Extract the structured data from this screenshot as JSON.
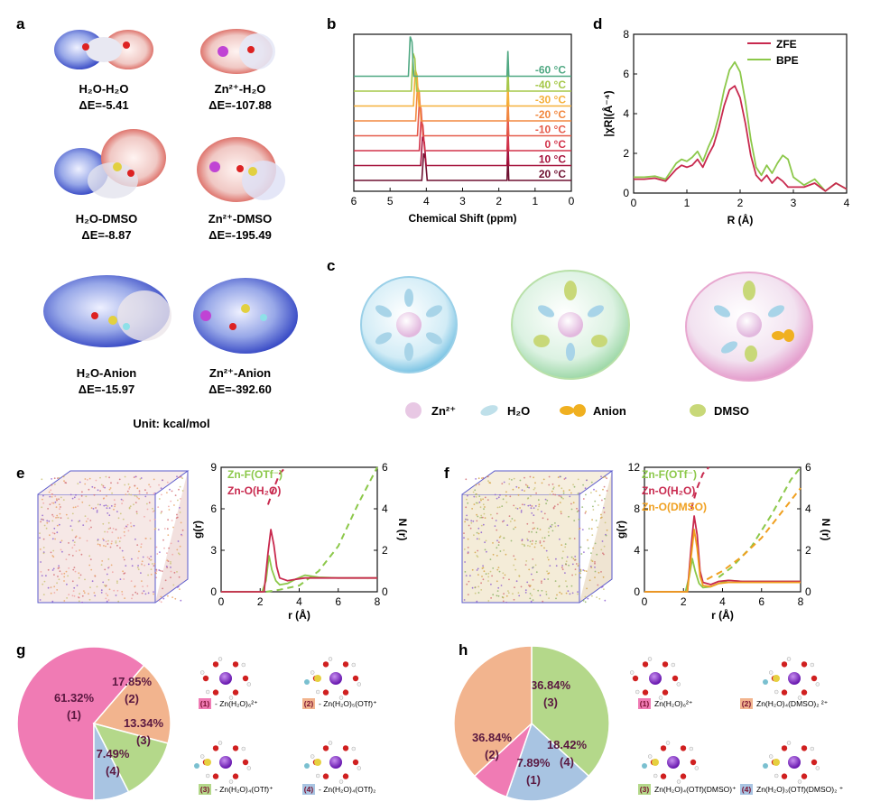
{
  "panels": {
    "a": {
      "letter": "a",
      "items": [
        {
          "name": "H₂O-H₂O",
          "energy": "ΔE=-5.41"
        },
        {
          "name": "Zn²⁺-H₂O",
          "energy": "ΔE=-107.88"
        },
        {
          "name": "H₂O-DMSO",
          "energy": "ΔE=-8.87"
        },
        {
          "name": "Zn²⁺-DMSO",
          "energy": "ΔE=-195.49"
        },
        {
          "name": "H₂O-Anion",
          "energy": "ΔE=-15.97"
        },
        {
          "name": "Zn²⁺-Anion",
          "energy": "ΔE=-392.60"
        }
      ],
      "unit": "Unit: kcal/mol"
    },
    "b": {
      "letter": "b"
    },
    "c": {
      "letter": "c",
      "legend": [
        {
          "label": "Zn²⁺",
          "color": "#e8c8e4"
        },
        {
          "label": "H₂O",
          "color": "#bfe0ea"
        },
        {
          "label": "Anion",
          "color": "#f0b020"
        },
        {
          "label": "DMSO",
          "color": "#c8d878"
        }
      ]
    },
    "d": {
      "letter": "d"
    },
    "e": {
      "letter": "e"
    },
    "f": {
      "letter": "f"
    },
    "g": {
      "letter": "g"
    },
    "h": {
      "letter": "h"
    }
  },
  "chart_data": [
    {
      "id": "b",
      "type": "line",
      "xlabel": "Chemical Shift (ppm)",
      "xlim": [
        6,
        0
      ],
      "x_ticks": [
        "6",
        "5",
        "4",
        "3",
        "2",
        "1",
        "0"
      ],
      "series": [
        {
          "name": "20 °C",
          "color": "#6e1030",
          "peaks": [
            4.05,
            1.75
          ]
        },
        {
          "name": "10 °C",
          "color": "#a5123c",
          "peaks": [
            4.08,
            1.75
          ]
        },
        {
          "name": "0 °C",
          "color": "#d2334a",
          "peaks": [
            4.12,
            1.75
          ]
        },
        {
          "name": "-10 °C",
          "color": "#e55a4a",
          "peaks": [
            4.17,
            1.75
          ]
        },
        {
          "name": "-20 °C",
          "color": "#f28840",
          "peaks": [
            4.22,
            1.75
          ]
        },
        {
          "name": "-30 °C",
          "color": "#f5b03a",
          "peaks": [
            4.28,
            1.75
          ]
        },
        {
          "name": "-40 °C",
          "color": "#a6c84a",
          "peaks": [
            4.34,
            1.75
          ]
        },
        {
          "name": "-60 °C",
          "color": "#4fa882",
          "peaks": [
            4.42,
            1.75
          ]
        }
      ]
    },
    {
      "id": "d",
      "type": "line",
      "xlabel": "R (Å)",
      "ylabel": "|χR|(Å⁻⁴)",
      "xlim": [
        0,
        4
      ],
      "ylim": [
        0,
        8
      ],
      "x_ticks": [
        "0",
        "1",
        "2",
        "3",
        "4"
      ],
      "y_ticks": [
        "0",
        "2",
        "4",
        "6",
        "8"
      ],
      "legend": "top-right",
      "series": [
        {
          "name": "ZFE",
          "color": "#c8294e",
          "x": [
            0,
            0.2,
            0.4,
            0.6,
            0.8,
            0.9,
            1.0,
            1.1,
            1.2,
            1.3,
            1.4,
            1.5,
            1.6,
            1.7,
            1.8,
            1.9,
            2.0,
            2.1,
            2.2,
            2.3,
            2.4,
            2.5,
            2.6,
            2.7,
            2.8,
            2.9,
            3.0,
            3.2,
            3.4,
            3.6,
            3.8,
            4.0
          ],
          "y": [
            0.7,
            0.7,
            0.75,
            0.6,
            1.2,
            1.4,
            1.3,
            1.4,
            1.7,
            1.3,
            1.9,
            2.4,
            3.3,
            4.4,
            5.2,
            5.4,
            4.8,
            3.5,
            1.9,
            0.9,
            0.6,
            0.9,
            0.5,
            0.8,
            0.6,
            0.3,
            0.3,
            0.3,
            0.5,
            0.1,
            0.5,
            0.2
          ]
        },
        {
          "name": "BPE",
          "color": "#8cc84a",
          "x": [
            0,
            0.2,
            0.4,
            0.6,
            0.8,
            0.9,
            1.0,
            1.1,
            1.2,
            1.3,
            1.4,
            1.5,
            1.6,
            1.7,
            1.8,
            1.9,
            2.0,
            2.1,
            2.2,
            2.3,
            2.4,
            2.5,
            2.6,
            2.7,
            2.8,
            2.9,
            3.0,
            3.2,
            3.4,
            3.6,
            3.8,
            4.0
          ],
          "y": [
            0.8,
            0.8,
            0.85,
            0.7,
            1.5,
            1.7,
            1.6,
            1.8,
            2.1,
            1.6,
            2.3,
            2.9,
            3.9,
            5.2,
            6.2,
            6.6,
            6.1,
            4.6,
            2.7,
            1.3,
            0.9,
            1.4,
            1.0,
            1.5,
            1.9,
            1.7,
            0.8,
            0.4,
            0.7,
            0.1,
            0.5,
            0.2
          ]
        }
      ]
    },
    {
      "id": "e",
      "type": "line",
      "xlabel": "r (Å)",
      "ylabel": "g(r)",
      "ylabel_right": "N (r)",
      "xlim": [
        0,
        8
      ],
      "ylim": [
        0,
        9
      ],
      "ylim_right": [
        0,
        6
      ],
      "x_ticks": [
        "0",
        "2",
        "4",
        "6",
        "8"
      ],
      "y_ticks": [
        "0",
        "3",
        "6",
        "9"
      ],
      "y_ticks_right": [
        "0",
        "2",
        "4",
        "6"
      ],
      "series": [
        {
          "name": "Zn-F(OTf⁻)",
          "color": "#8cc84a",
          "x": [
            0,
            2.1,
            2.3,
            2.45,
            2.6,
            2.8,
            3.0,
            3.4,
            3.8,
            4.3,
            5.0,
            6.0,
            7.0,
            8.0
          ],
          "y": [
            0,
            0,
            0.8,
            2.6,
            1.6,
            0.8,
            0.5,
            0.6,
            0.9,
            1.2,
            1.05,
            1.0,
            1.0,
            1.0
          ],
          "cn_x": [
            2.3,
            3.0,
            4.0,
            5.0,
            6.0,
            7.0,
            8.0
          ],
          "cn_y": [
            0,
            0.1,
            0.3,
            1.0,
            2.2,
            4.2,
            6.0
          ]
        },
        {
          "name": "Zn-O(H₂O)",
          "color": "#c8294e",
          "x": [
            0,
            2.2,
            2.4,
            2.55,
            2.7,
            2.85,
            3.0,
            3.4,
            3.8,
            4.3,
            5.0,
            6.0,
            7.0,
            8.0
          ],
          "y": [
            0,
            0,
            2.8,
            4.5,
            3.4,
            1.8,
            1.0,
            0.8,
            0.9,
            1.0,
            1.0,
            1.0,
            1.0,
            1.0
          ],
          "cn_x": [
            2.4,
            2.7,
            3.0,
            3.3
          ],
          "cn_y": [
            4.2,
            5.0,
            5.7,
            6.0
          ]
        }
      ]
    },
    {
      "id": "f",
      "type": "line",
      "xlabel": "r (Å)",
      "ylabel": "g(r)",
      "ylabel_right": "N (r)",
      "xlim": [
        0,
        8
      ],
      "ylim": [
        0,
        12
      ],
      "ylim_right": [
        0,
        6
      ],
      "x_ticks": [
        "0",
        "2",
        "4",
        "6",
        "8"
      ],
      "y_ticks": [
        "0",
        "4",
        "8",
        "12"
      ],
      "y_ticks_right": [
        "0",
        "2",
        "4",
        "6"
      ],
      "series": [
        {
          "name": "Zn-F(OTf⁻)",
          "color": "#8cc84a",
          "x": [
            0,
            2.1,
            2.3,
            2.45,
            2.6,
            2.8,
            3.0,
            3.4,
            3.8,
            4.3,
            5.0,
            6.0,
            7.0,
            8.0
          ],
          "y": [
            0,
            0,
            1.5,
            3.2,
            2.0,
            0.8,
            0.4,
            0.5,
            0.8,
            1.1,
            1.0,
            1.0,
            1.0,
            1.0
          ],
          "cn_x": [
            3.8,
            4.5,
            5.5,
            6.5,
            7.5,
            8.0
          ],
          "cn_y": [
            0.7,
            1.2,
            2.2,
            3.7,
            5.4,
            6.0
          ]
        },
        {
          "name": "Zn-O(H₂O)",
          "color": "#c8294e",
          "x": [
            0,
            2.2,
            2.4,
            2.55,
            2.7,
            2.85,
            3.0,
            3.4,
            3.8,
            4.3,
            5.0,
            6.0,
            7.0,
            8.0
          ],
          "y": [
            0,
            0,
            4.5,
            7.3,
            5.5,
            2.0,
            0.9,
            0.7,
            1.0,
            1.1,
            1.0,
            1.0,
            1.0,
            1.0
          ],
          "cn_x": [
            2.4,
            2.7,
            3.0,
            3.3
          ],
          "cn_y": [
            4.0,
            5.0,
            5.7,
            6.0
          ]
        },
        {
          "name": "Zn-O(DMSO)",
          "color": "#f0a020",
          "x": [
            0,
            2.2,
            2.4,
            2.55,
            2.7,
            2.85,
            3.0,
            3.4,
            3.8,
            4.3,
            5.0,
            6.0,
            7.0,
            8.0
          ],
          "y": [
            0,
            0,
            3.5,
            6.0,
            4.2,
            1.5,
            0.6,
            0.5,
            0.8,
            0.9,
            0.9,
            0.9,
            0.9,
            0.9
          ],
          "cn_x": [
            3.2,
            4.0,
            5.0,
            6.0,
            7.0,
            8.0
          ],
          "cn_y": [
            0.6,
            1.0,
            1.7,
            2.6,
            3.8,
            5.0
          ]
        }
      ]
    },
    {
      "id": "g",
      "type": "pie",
      "slices": [
        {
          "label": "61.32%",
          "index": "(1)",
          "value": 61.32,
          "color": "#f07bb4"
        },
        {
          "label": "17.85%",
          "index": "(2)",
          "value": 17.85,
          "color": "#f2b48e"
        },
        {
          "label": "13.34%",
          "index": "(3)",
          "value": 13.34,
          "color": "#b4d88a"
        },
        {
          "label": "7.49%",
          "index": "(4)",
          "value": 7.49,
          "color": "#a8c4e2"
        }
      ],
      "legend_items": [
        {
          "index": "(1)",
          "text": "- Zn(H₂O)₆²⁺",
          "color": "#f07bb4"
        },
        {
          "index": "(2)",
          "text": "- Zn(H₂O)₅(OTf)⁺",
          "color": "#f2b48e"
        },
        {
          "index": "(3)",
          "text": "- Zn(H₂O)₄(OTf)⁺",
          "color": "#b4d88a"
        },
        {
          "index": "(4)",
          "text": "- Zn(H₂O)₄(OTf)₂",
          "color": "#a8c4e2"
        }
      ]
    },
    {
      "id": "h",
      "type": "pie",
      "slices": [
        {
          "label": "36.84%",
          "index": "(3)",
          "value": 36.84,
          "color": "#b4d88a"
        },
        {
          "label": "18.42%",
          "index": "(4)",
          "value": 18.42,
          "color": "#a8c4e2"
        },
        {
          "label": "7.89%",
          "index": "(1)",
          "value": 7.89,
          "color": "#f07bb4"
        },
        {
          "label": "36.84%",
          "index": "(2)",
          "value": 36.84,
          "color": "#f2b48e"
        }
      ],
      "legend_items": [
        {
          "index": "(1)",
          "text": "Zn(H₂O)₆²⁺",
          "color": "#f07bb4"
        },
        {
          "index": "(2)",
          "text": "Zn(H₂O)₄(DMSO)₂ ²⁺",
          "color": "#f2b48e"
        },
        {
          "index": "(3)",
          "text": "Zn(H₂O)₄(OTf)(DMSO)⁺",
          "color": "#b4d88a"
        },
        {
          "index": "(4)",
          "text": "Zn(H₂O)₃(OTf)(DMSO)₂ ⁺",
          "color": "#a8c4e2"
        }
      ]
    }
  ]
}
